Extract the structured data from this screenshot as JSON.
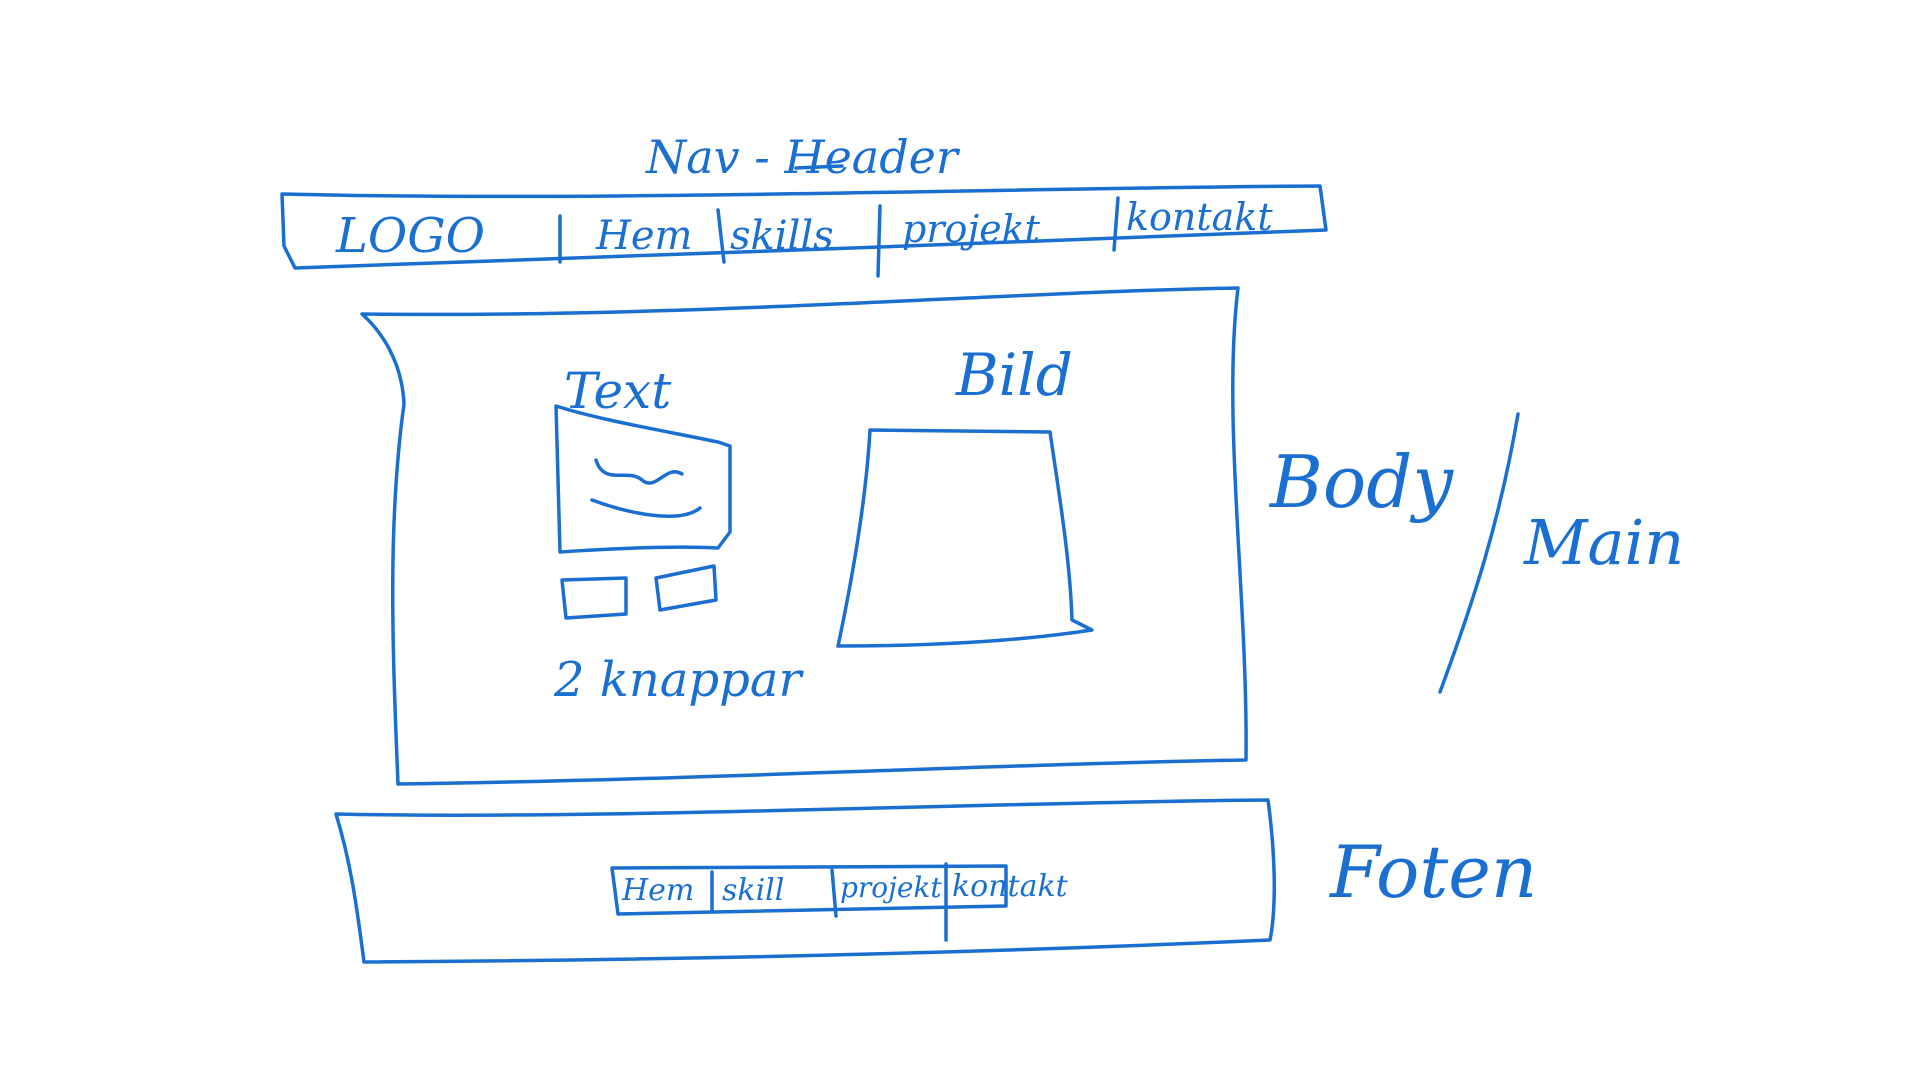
{
  "accent_color": "#1a6fd1",
  "header": {
    "title": "Nav - Header",
    "logo": "LOGO",
    "nav_items": [
      {
        "label": "Hem"
      },
      {
        "label": "skills"
      },
      {
        "label": "projekt"
      },
      {
        "label": "kontakt"
      }
    ]
  },
  "main": {
    "side_label_1": "Body",
    "side_label_2": "Main",
    "text_label": "Text",
    "image_label": "Bild",
    "buttons_label": "2 knappar",
    "button_count": 2
  },
  "footer": {
    "side_label": "Foten",
    "nav_items": [
      {
        "label": "Hem"
      },
      {
        "label": "skill"
      },
      {
        "label": "projekt"
      },
      {
        "label": "kontakt"
      }
    ]
  }
}
